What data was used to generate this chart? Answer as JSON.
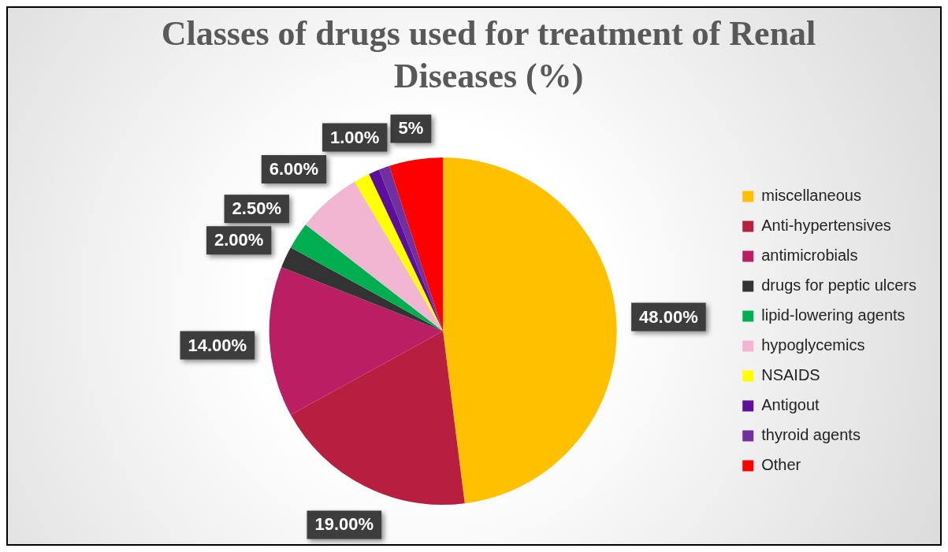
{
  "chart_data": {
    "type": "pie",
    "title": "Classes of drugs used for treatment of Renal Diseases (%)",
    "categories": [
      "miscellaneous",
      "Anti-hypertensives",
      "antimicrobials",
      "drugs for peptic ulcers",
      "lipid-lowering agents",
      "hypoglycemics",
      "NSAIDS",
      "Antigout",
      "thyroid agents",
      "Other"
    ],
    "values": [
      48,
      19,
      14,
      2,
      2.5,
      6,
      1.5,
      1,
      1,
      5
    ],
    "colors": [
      "#ffc000",
      "#b71e40",
      "#bb1f63",
      "#333333",
      "#00b050",
      "#f2b5d2",
      "#ffff00",
      "#5c0f9c",
      "#7030a0",
      "#ff0000"
    ],
    "value_labels": [
      "48.00%",
      "19.00%",
      "14.00%",
      "2.00%",
      "2.50%",
      "6.00%",
      null,
      null,
      "1.00%",
      "5%"
    ],
    "legend": "right"
  }
}
